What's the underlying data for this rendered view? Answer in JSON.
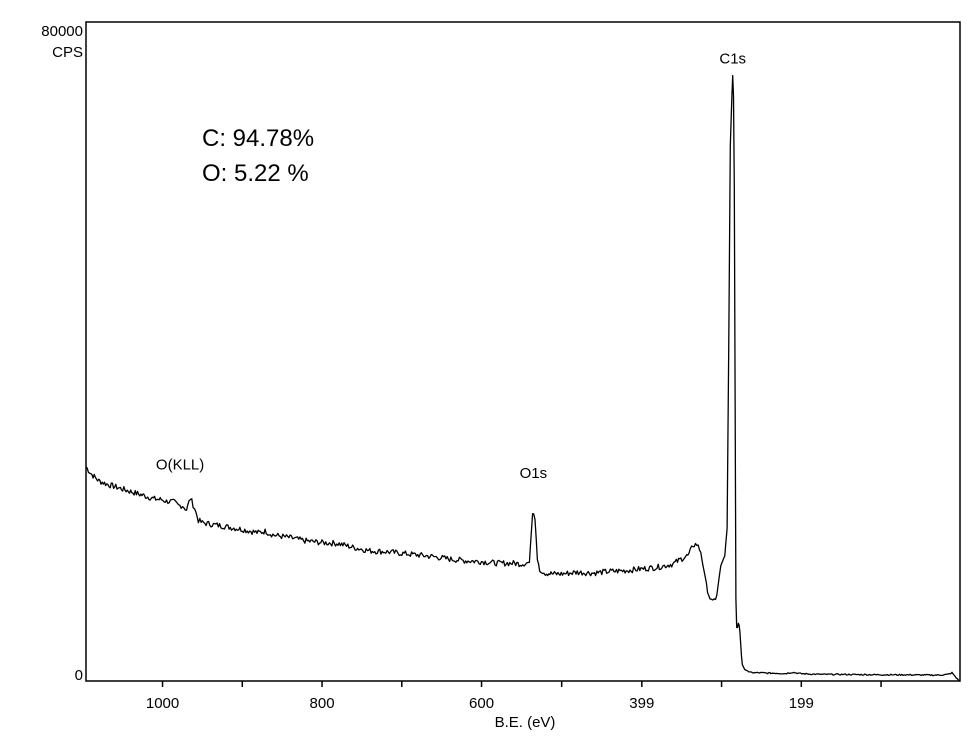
{
  "chart_data": {
    "type": "line",
    "title": "",
    "xlabel": "B.E. (eV)",
    "ylabel": "CPS",
    "xlim": [
      1096,
      0
    ],
    "ylim": [
      0,
      80000
    ],
    "x_reversed": true,
    "x_ticks": [
      1000,
      800,
      600,
      399,
      199
    ],
    "y_tick_labels": [
      {
        "value": 0,
        "label": "0"
      },
      {
        "value": 80000,
        "label": "80000"
      }
    ],
    "grid": false,
    "legend": "none",
    "line_color": "#000000",
    "composition": [
      {
        "element": "C",
        "text": "C: 94.78%"
      },
      {
        "element": "O",
        "text": "O: 5.22 %"
      }
    ],
    "peak_labels": [
      {
        "label": "O(KLL)",
        "x": 978,
        "y": 23500
      },
      {
        "label": "O1s",
        "x": 535,
        "y": 22000
      },
      {
        "label": "C1s",
        "x": 285,
        "y": 73500
      }
    ],
    "series": [
      {
        "x": [
          1096,
          1090,
          1080,
          1070,
          1060,
          1050,
          1040,
          1030,
          1020,
          1010,
          1000,
          995,
          990,
          985,
          980,
          975,
          970,
          965,
          960,
          955,
          950,
          930,
          900,
          880,
          870,
          868,
          860,
          840,
          820,
          800,
          780,
          760,
          740,
          720,
          700,
          680,
          660,
          640,
          620,
          600,
          580,
          560,
          550,
          545,
          540,
          536,
          533,
          530,
          527,
          525,
          520,
          510,
          500,
          480,
          460,
          440,
          420,
          400,
          380,
          360,
          350,
          340,
          335,
          330,
          325,
          322,
          320,
          318,
          315,
          312,
          310,
          305,
          300,
          295,
          292,
          290,
          288,
          286,
          285,
          284,
          283,
          282,
          281,
          280,
          279,
          278,
          277,
          276,
          275,
          274,
          273,
          272,
          270,
          268,
          266,
          265,
          262,
          260,
          250,
          240,
          230,
          220,
          210,
          200,
          190,
          180,
          170,
          150,
          130,
          100,
          70,
          40,
          25,
          15,
          10,
          5,
          0
        ],
        "y": [
          26000,
          25200,
          24300,
          23900,
          23600,
          23300,
          23000,
          22700,
          22400,
          22100,
          22000,
          21800,
          21800,
          21700,
          21300,
          21300,
          20800,
          22200,
          21000,
          19500,
          19200,
          18900,
          18400,
          18000,
          18200,
          18000,
          17700,
          17400,
          17000,
          16800,
          16700,
          16200,
          15800,
          15700,
          15500,
          15300,
          15100,
          14800,
          14600,
          14500,
          14300,
          14300,
          14200,
          14300,
          14400,
          20300,
          19600,
          15000,
          13600,
          13400,
          13100,
          13000,
          13000,
          13200,
          13100,
          13300,
          13400,
          13600,
          13800,
          14200,
          14800,
          15300,
          16500,
          16600,
          15700,
          14000,
          12600,
          11600,
          10500,
          9700,
          9500,
          10400,
          14000,
          15200,
          18500,
          40000,
          65000,
          71000,
          73500,
          71000,
          60000,
          35000,
          10000,
          6500,
          6500,
          7000,
          6800,
          6000,
          4500,
          3000,
          2000,
          1800,
          1400,
          1300,
          1200,
          1100,
          1100,
          1000,
          1000,
          950,
          950,
          900,
          1050,
          900,
          850,
          820,
          800,
          800,
          780,
          760,
          750,
          720,
          720,
          800,
          1000,
          400,
          0
        ]
      }
    ]
  }
}
